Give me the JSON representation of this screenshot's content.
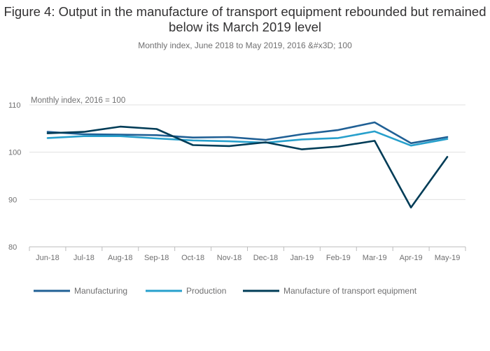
{
  "header": {
    "title": "Figure 4: Output in the manufacture of transport equipment rebounded but remained below its March 2019 level",
    "subtitle": "Monthly index, June 2018 to May 2019, 2016 &#x3D; 100"
  },
  "chart_data": {
    "type": "line",
    "title": "Figure 4: Output in the manufacture of transport equipment rebounded but remained below its March 2019 level",
    "subtitle": "Monthly index, June 2018 to May 2019, 2016 &#x3D; 100",
    "ylabel": "Monthly index, 2016 = 100",
    "xlabel": "",
    "categories": [
      "Jun-18",
      "Jul-18",
      "Aug-18",
      "Sep-18",
      "Oct-18",
      "Nov-18",
      "Dec-18",
      "Jan-19",
      "Feb-19",
      "Mar-19",
      "Apr-19",
      "May-19"
    ],
    "ylim": [
      80,
      110
    ],
    "yticks": [
      80,
      90,
      100,
      110
    ],
    "grid": true,
    "legend_position": "bottom",
    "series": [
      {
        "name": "Manufacturing",
        "color": "#206095",
        "values": [
          104.3,
          103.8,
          103.7,
          103.6,
          103.1,
          103.2,
          102.6,
          103.8,
          104.7,
          106.3,
          101.9,
          103.2
        ]
      },
      {
        "name": "Production",
        "color": "#27a0cc",
        "values": [
          103.0,
          103.4,
          103.4,
          102.9,
          102.5,
          102.3,
          102.0,
          102.7,
          103.0,
          104.4,
          101.4,
          102.8
        ]
      },
      {
        "name": "Manufacture of transport equipment",
        "color": "#003c57",
        "values": [
          104.0,
          104.3,
          105.4,
          104.9,
          101.5,
          101.3,
          102.1,
          100.6,
          101.2,
          102.4,
          88.3,
          99.0
        ]
      }
    ]
  }
}
